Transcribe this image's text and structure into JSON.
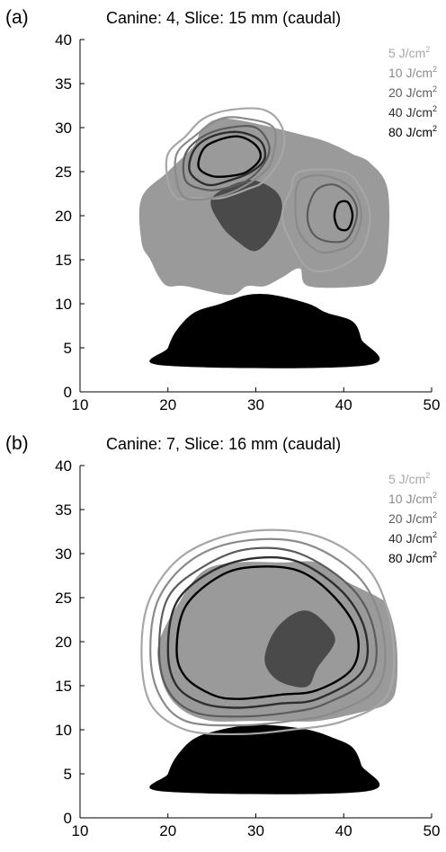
{
  "colors": {
    "tissue": "#9a9a9a",
    "tumor": "#4a4a4a",
    "base": "#000000",
    "c5": "#a6a6a6",
    "c10": "#8a8a8a",
    "c20": "#5c5c5c",
    "c40": "#2e2e2e",
    "c80": "#000000"
  },
  "chart_data": [
    {
      "type": "contour",
      "panel_label": "(a)",
      "title": "Canine: 4, Slice: 15 mm (caudal)",
      "xlabel": "",
      "ylabel": "",
      "xlim": [
        10,
        50
      ],
      "ylim": [
        0,
        40
      ],
      "xticks": [
        "10",
        "20",
        "30",
        "40",
        "50"
      ],
      "yticks": [
        "0",
        "5",
        "10",
        "15",
        "20",
        "25",
        "30",
        "35",
        "40"
      ],
      "legend_position": "top-right",
      "legend": [
        {
          "label": "5 J/cm",
          "sup": "2",
          "color": "#a6a6a6"
        },
        {
          "label": "10 J/cm",
          "sup": "2",
          "color": "#8a8a8a"
        },
        {
          "label": "20 J/cm",
          "sup": "2",
          "color": "#5c5c5c"
        },
        {
          "label": "40 J/cm",
          "sup": "2",
          "color": "#2e2e2e"
        },
        {
          "label": "80 J/cm",
          "sup": "2",
          "color": "#000000"
        }
      ],
      "tissue_outline": [
        [
          17,
          22
        ],
        [
          20,
          25
        ],
        [
          23,
          28
        ],
        [
          24,
          30
        ],
        [
          27,
          31
        ],
        [
          36,
          29
        ],
        [
          39,
          28
        ],
        [
          41,
          27
        ],
        [
          43,
          26
        ],
        [
          45,
          23
        ],
        [
          45,
          16
        ],
        [
          44,
          13
        ],
        [
          42,
          12
        ],
        [
          36,
          12
        ],
        [
          35,
          14
        ],
        [
          33,
          13
        ],
        [
          31,
          12
        ],
        [
          29,
          12
        ],
        [
          27,
          11
        ],
        [
          22,
          12
        ],
        [
          20,
          12
        ],
        [
          19,
          13
        ],
        [
          18,
          15
        ],
        [
          17,
          17
        ]
      ],
      "tumor_outline": [
        [
          25,
          22
        ],
        [
          29,
          24
        ],
        [
          32,
          23
        ],
        [
          33,
          21
        ],
        [
          32,
          18
        ],
        [
          30,
          16
        ],
        [
          28,
          17
        ],
        [
          26,
          19
        ]
      ],
      "base_outline": [
        [
          19.5,
          3
        ],
        [
          42.5,
          3
        ],
        [
          42,
          6
        ],
        [
          41,
          8
        ],
        [
          38,
          9
        ],
        [
          36,
          10
        ],
        [
          32,
          11
        ],
        [
          29,
          11
        ],
        [
          26,
          10
        ],
        [
          23,
          9
        ],
        [
          21,
          7
        ],
        [
          20,
          5
        ]
      ],
      "contours": [
        {
          "level": 5,
          "color": "#a6a6a6",
          "width": 2.2,
          "points": [
            [
              20,
              24
            ],
            [
              20,
              27
            ],
            [
              22,
              29
            ],
            [
              24,
              31
            ],
            [
              27,
              32
            ],
            [
              31,
              32
            ],
            [
              33,
              30
            ],
            [
              33,
              27
            ],
            [
              31,
              24
            ],
            [
              29,
              23
            ],
            [
              26,
              22
            ],
            [
              23,
              22
            ],
            [
              21,
              22
            ]
          ]
        },
        {
          "level": 5,
          "color": "#a6a6a6",
          "width": 2.2,
          "points": [
            [
              34,
              23
            ],
            [
              35,
              25
            ],
            [
              40,
              25
            ],
            [
              42,
              23
            ],
            [
              43,
              20
            ],
            [
              42,
              16
            ],
            [
              39,
              14
            ],
            [
              36,
              14
            ],
            [
              34,
              17
            ],
            [
              33,
              20
            ]
          ]
        },
        {
          "level": 10,
          "color": "#8a8a8a",
          "width": 2.2,
          "points": [
            [
              21,
              24
            ],
            [
              21,
              27
            ],
            [
              23,
              29
            ],
            [
              26,
              31
            ],
            [
              29,
              31
            ],
            [
              32,
              30
            ],
            [
              32,
              27
            ],
            [
              31,
              25
            ],
            [
              28,
              23
            ],
            [
              25,
              22
            ],
            [
              22,
              22
            ]
          ]
        },
        {
          "level": 10,
          "color": "#8a8a8a",
          "width": 2.2,
          "points": [
            [
              34.5,
              21
            ],
            [
              35,
              24
            ],
            [
              38,
              24.5
            ],
            [
              41,
              23
            ],
            [
              42,
              20
            ],
            [
              41,
              17
            ],
            [
              39,
              16
            ],
            [
              37,
              16
            ],
            [
              35,
              18
            ]
          ]
        },
        {
          "level": 20,
          "color": "#5c5c5c",
          "width": 2.2,
          "points": [
            [
              22,
              24
            ],
            [
              22,
              27
            ],
            [
              24,
              29
            ],
            [
              27,
              30
            ],
            [
              30,
              30
            ],
            [
              31.5,
              28
            ],
            [
              31,
              26
            ],
            [
              29,
              24
            ],
            [
              26,
              23
            ],
            [
              24,
              23
            ]
          ]
        },
        {
          "level": 20,
          "color": "#5c5c5c",
          "width": 2.2,
          "points": [
            [
              36,
              21
            ],
            [
              37,
              23
            ],
            [
              39,
              23.5
            ],
            [
              41,
              22
            ],
            [
              41.5,
              20
            ],
            [
              40.5,
              17.5
            ],
            [
              39,
              17
            ],
            [
              37,
              17.5
            ],
            [
              36,
              19
            ]
          ]
        },
        {
          "level": 40,
          "color": "#2e2e2e",
          "width": 2.4,
          "points": [
            [
              22.5,
              25
            ],
            [
              23,
              27.5
            ],
            [
              25,
              29
            ],
            [
              28,
              29.5
            ],
            [
              30.5,
              28.5
            ],
            [
              31,
              26.5
            ],
            [
              29.5,
              25
            ],
            [
              27,
              24
            ],
            [
              24.5,
              23.5
            ]
          ]
        },
        {
          "level": 80,
          "color": "#000000",
          "width": 2.4,
          "points": [
            [
              23.5,
              25.5
            ],
            [
              24,
              27.5
            ],
            [
              25.5,
              28.5
            ],
            [
              28,
              29
            ],
            [
              30,
              28
            ],
            [
              30.5,
              26.5
            ],
            [
              29,
              25
            ],
            [
              27,
              24.5
            ],
            [
              25,
              24.5
            ]
          ]
        },
        {
          "level": 80,
          "color": "#000000",
          "width": 2.4,
          "points": [
            [
              39,
              20.5
            ],
            [
              39.5,
              21.5
            ],
            [
              40.5,
              21.5
            ],
            [
              41,
              20
            ],
            [
              40.5,
              18.5
            ],
            [
              39.5,
              18.5
            ],
            [
              39,
              19.5
            ]
          ]
        }
      ]
    },
    {
      "type": "contour",
      "panel_label": "(b)",
      "title": "Canine: 7, Slice: 16 mm (caudal)",
      "xlabel": "",
      "ylabel": "",
      "xlim": [
        10,
        50
      ],
      "ylim": [
        0,
        40
      ],
      "xticks": [
        "10",
        "20",
        "30",
        "40",
        "50"
      ],
      "yticks": [
        "0",
        "5",
        "10",
        "15",
        "20",
        "25",
        "30",
        "35",
        "40"
      ],
      "legend_position": "top-right",
      "legend": [
        {
          "label": "5 J/cm",
          "sup": "2",
          "color": "#a6a6a6"
        },
        {
          "label": "10 J/cm",
          "sup": "2",
          "color": "#8a8a8a"
        },
        {
          "label": "20 J/cm",
          "sup": "2",
          "color": "#5c5c5c"
        },
        {
          "label": "40 J/cm",
          "sup": "2",
          "color": "#2e2e2e"
        },
        {
          "label": "80 J/cm",
          "sup": "2",
          "color": "#000000"
        }
      ],
      "tissue_outline": [
        [
          21,
          24
        ],
        [
          24,
          28
        ],
        [
          28,
          29
        ],
        [
          33,
          29
        ],
        [
          37,
          29
        ],
        [
          40,
          27
        ],
        [
          42,
          26
        ],
        [
          44,
          25
        ],
        [
          45,
          24
        ],
        [
          46,
          20
        ],
        [
          46,
          15
        ],
        [
          45,
          13
        ],
        [
          42,
          12
        ],
        [
          37,
          11
        ],
        [
          33,
          11
        ],
        [
          29,
          11
        ],
        [
          25,
          11
        ],
        [
          22,
          12
        ],
        [
          20,
          14
        ],
        [
          19,
          17
        ],
        [
          19,
          20
        ]
      ],
      "tumor_outline": [
        [
          32,
          21
        ],
        [
          34,
          23
        ],
        [
          36,
          23.5
        ],
        [
          38,
          22
        ],
        [
          39,
          20
        ],
        [
          37,
          17
        ],
        [
          36,
          15
        ],
        [
          34,
          15
        ],
        [
          32,
          16
        ],
        [
          31,
          18
        ]
      ],
      "base_outline": [
        [
          19.5,
          3
        ],
        [
          42.5,
          3
        ],
        [
          42,
          6
        ],
        [
          41,
          8
        ],
        [
          39,
          9
        ],
        [
          36,
          10
        ],
        [
          32,
          10.5
        ],
        [
          29,
          10.5
        ],
        [
          26,
          10
        ],
        [
          23,
          9
        ],
        [
          21,
          7
        ],
        [
          20,
          5
        ]
      ],
      "contours": [
        {
          "level": 5,
          "color": "#a6a6a6",
          "width": 2.2,
          "points": [
            [
              17,
              19
            ],
            [
              18,
              25
            ],
            [
              22,
              30
            ],
            [
              29,
              32.5
            ],
            [
              37,
              32
            ],
            [
              43,
              28
            ],
            [
              45.5,
              21
            ],
            [
              45,
              14
            ],
            [
              40,
              11
            ],
            [
              34,
              10
            ],
            [
              28,
              9.5
            ],
            [
              22,
              10
            ],
            [
              18,
              13
            ]
          ]
        },
        {
          "level": 10,
          "color": "#8a8a8a",
          "width": 2.2,
          "points": [
            [
              18,
              19
            ],
            [
              19,
              25
            ],
            [
              23,
              29.5
            ],
            [
              29,
              31.5
            ],
            [
              36,
              31
            ],
            [
              42,
              27
            ],
            [
              44.5,
              21
            ],
            [
              44,
              15
            ],
            [
              39,
              12
            ],
            [
              34,
              11
            ],
            [
              28,
              10.5
            ],
            [
              22,
              11
            ],
            [
              19,
              14
            ]
          ]
        },
        {
          "level": 20,
          "color": "#5c5c5c",
          "width": 2.2,
          "points": [
            [
              19,
              19
            ],
            [
              20,
              25
            ],
            [
              24,
              28.5
            ],
            [
              29,
              30.5
            ],
            [
              35,
              30
            ],
            [
              41,
              26
            ],
            [
              43.5,
              21
            ],
            [
              43,
              16
            ],
            [
              38,
              13
            ],
            [
              34,
              12
            ],
            [
              28,
              11.5
            ],
            [
              23,
              12
            ],
            [
              20,
              14.5
            ]
          ]
        },
        {
          "level": 40,
          "color": "#2e2e2e",
          "width": 2.4,
          "points": [
            [
              20,
              19
            ],
            [
              21,
              24.5
            ],
            [
              25,
              28
            ],
            [
              30,
              29.5
            ],
            [
              35,
              29
            ],
            [
              40,
              25.5
            ],
            [
              42.5,
              21
            ],
            [
              42,
              16.5
            ],
            [
              37,
              13.5
            ],
            [
              33,
              13
            ],
            [
              28,
              12.5
            ],
            [
              24,
              13
            ],
            [
              21,
              15
            ]
          ]
        },
        {
          "level": 80,
          "color": "#000000",
          "width": 2.4,
          "points": [
            [
              21,
              19
            ],
            [
              22,
              24
            ],
            [
              26,
              27.5
            ],
            [
              30,
              28.5
            ],
            [
              35,
              28
            ],
            [
              39,
              25
            ],
            [
              41.5,
              21
            ],
            [
              41,
              17
            ],
            [
              37,
              14.5
            ],
            [
              33,
              14
            ],
            [
              28,
              13.5
            ],
            [
              25,
              14
            ],
            [
              22,
              16
            ]
          ]
        }
      ]
    }
  ]
}
